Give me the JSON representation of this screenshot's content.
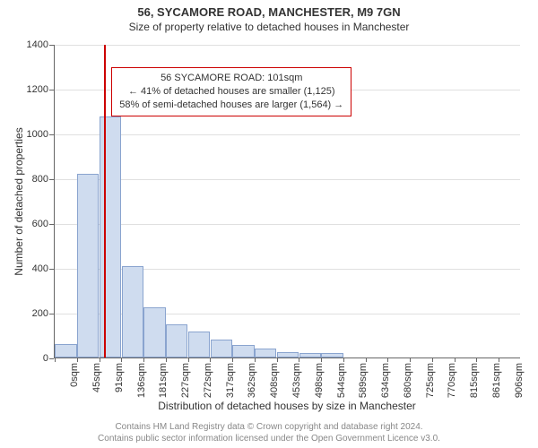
{
  "header": {
    "title": "56, SYCAMORE ROAD, MANCHESTER, M9 7GN",
    "subtitle": "Size of property relative to detached houses in Manchester"
  },
  "chart": {
    "type": "histogram",
    "ylabel": "Number of detached properties",
    "xlabel": "Distribution of detached houses by size in Manchester",
    "ylim": [
      0,
      1400
    ],
    "ytick_step": 200,
    "yticks": [
      0,
      200,
      400,
      600,
      800,
      1000,
      1200,
      1400
    ],
    "bar_fill": "#cfdcef",
    "bar_stroke": "#8aa4cf",
    "grid_color": "#e0e0e0",
    "axis_color": "#666666",
    "background_color": "#ffffff",
    "x_categories": [
      "0sqm",
      "45sqm",
      "91sqm",
      "136sqm",
      "181sqm",
      "227sqm",
      "272sqm",
      "317sqm",
      "362sqm",
      "408sqm",
      "453sqm",
      "498sqm",
      "544sqm",
      "589sqm",
      "634sqm",
      "680sqm",
      "725sqm",
      "770sqm",
      "815sqm",
      "861sqm",
      "906sqm"
    ],
    "values": [
      60,
      820,
      1075,
      410,
      225,
      150,
      115,
      80,
      55,
      40,
      25,
      20,
      20,
      0,
      0,
      0,
      0,
      0,
      0,
      0,
      0
    ],
    "reference": {
      "x_value_sqm": 101,
      "color": "#cc0000"
    },
    "annotation": {
      "line1": "56 SYCAMORE ROAD: 101sqm",
      "line2": "← 41% of detached houses are smaller (1,125)",
      "line3": "58% of semi-detached houses are larger (1,564) →",
      "border_color": "#cc0000",
      "background_color": "#ffffff",
      "fontsize": 11
    }
  },
  "attribution": {
    "line1": "Contains HM Land Registry data © Crown copyright and database right 2024.",
    "line2": "Contains public sector information licensed under the Open Government Licence v3.0."
  }
}
